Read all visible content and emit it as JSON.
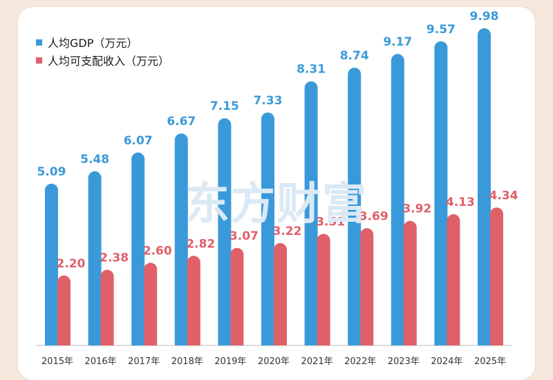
{
  "chart_data": {
    "type": "bar",
    "categories": [
      "2015年",
      "2016年",
      "2017年",
      "2018年",
      "2019年",
      "2020年",
      "2021年",
      "2022年",
      "2023年",
      "2024年",
      "2025年"
    ],
    "series": [
      {
        "name": "人均GDP（万元）",
        "color": "#3a9ad9",
        "values": [
          5.09,
          5.48,
          6.07,
          6.67,
          7.15,
          7.33,
          8.31,
          8.74,
          9.17,
          9.57,
          9.98
        ],
        "labels": [
          "5.09",
          "5.48",
          "6.07",
          "6.67",
          "7.15",
          "7.33",
          "8.31",
          "8.74",
          "9.17",
          "9.57",
          "9.98"
        ]
      },
      {
        "name": "人均可支配收入（万元）",
        "color": "#e0606a",
        "values": [
          2.2,
          2.38,
          2.6,
          2.82,
          3.07,
          3.22,
          3.51,
          3.69,
          3.92,
          4.13,
          4.34
        ],
        "labels": [
          "2.20",
          "2.38",
          "2.60",
          "2.82",
          "3.07",
          "3.22",
          "3.51",
          "3.69",
          "3.92",
          "4.13",
          "4.34"
        ]
      }
    ],
    "ylim": [
      0,
      10
    ],
    "legend_position": "top-left",
    "grid": false
  },
  "watermark": "东方财富"
}
